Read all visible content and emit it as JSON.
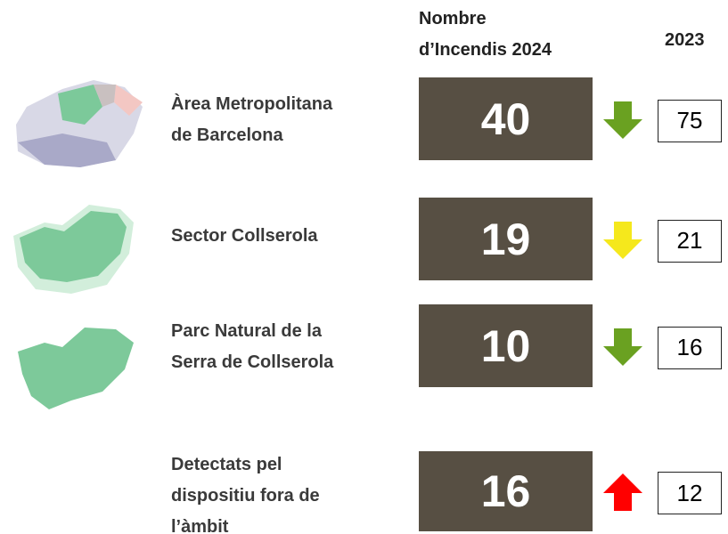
{
  "header": {
    "col_2024": [
      "Nombre",
      "d’Incendis 2024"
    ],
    "col_2023": "2023"
  },
  "rows": [
    {
      "label": [
        "Àrea Metropolitana",
        "de Barcelona"
      ],
      "value_2024": 40,
      "value_2023": 75,
      "arrow_color": "#6aa121"
    },
    {
      "label": [
        "Sector Collserola"
      ],
      "value_2024": 19,
      "value_2023": 21,
      "arrow_color": "#f5e81c"
    },
    {
      "label": [
        "Parc Natural de la",
        "Serra de Collserola"
      ],
      "value_2024": 10,
      "value_2023": 16,
      "arrow_color": "#6aa121"
    },
    {
      "label": [
        "Detectats pel",
        "dispositiu fora de",
        "l’àmbit"
      ],
      "value_2024": 16,
      "value_2023": 12,
      "arrow_color": "#ff0000"
    }
  ],
  "box_color": "#574f43"
}
